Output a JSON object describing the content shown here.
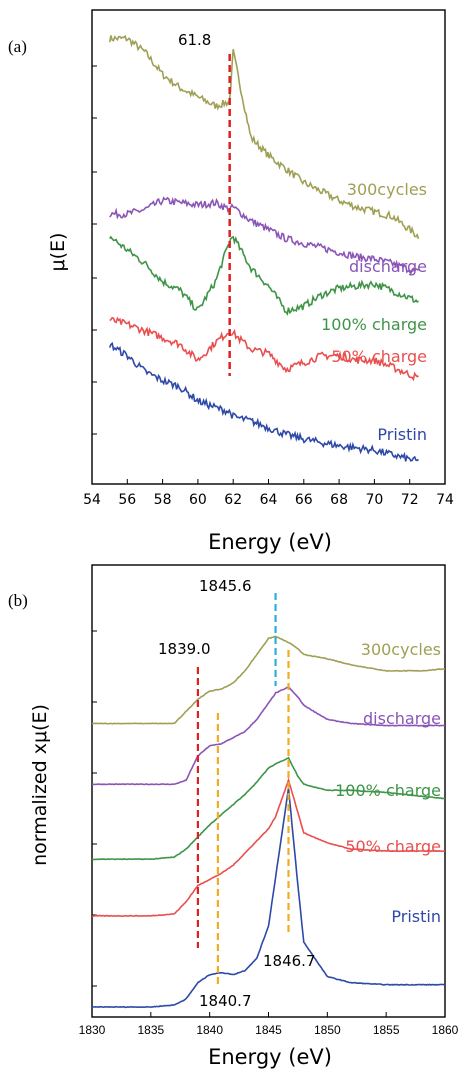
{
  "colors": {
    "300cycles": "#9fa055",
    "discharge": "#8a55b7",
    "100% charge": "#3e9447",
    "50% charge": "#e94f4f",
    "Pristin": "#2e49a8",
    "red_line": "#e02020",
    "orange_line": "#f0ad20",
    "blue_line": "#2ab0e0"
  },
  "chart_data": [
    {
      "type": "line",
      "panel_label": "(a)",
      "ylabel": "μ(E)",
      "xlabel": "Energy    (eV)",
      "xlim": [
        54,
        74
      ],
      "xticks": [
        "54",
        "56",
        "58",
        "60",
        "62",
        "64",
        "66",
        "68",
        "70",
        "72",
        "74"
      ],
      "x": [
        55,
        56,
        57,
        58,
        59,
        60,
        61,
        61.8,
        62,
        63,
        64,
        65,
        66,
        67,
        68,
        69,
        70,
        71,
        72.5
      ],
      "series": [
        {
          "name": "300cycles",
          "values": [
            9.5,
            9.5,
            9.2,
            8.7,
            8.4,
            8.2,
            8.0,
            8.1,
            9.2,
            7.3,
            6.9,
            6.6,
            6.3,
            6.1,
            5.9,
            5.75,
            5.65,
            5.55,
            5.1
          ]
        },
        {
          "name": "discharge",
          "values": [
            5.6,
            5.6,
            5.7,
            5.9,
            5.85,
            5.8,
            5.85,
            5.7,
            5.75,
            5.45,
            5.25,
            5.05,
            4.95,
            4.85,
            4.75,
            4.65,
            4.6,
            4.5,
            4.3
          ]
        },
        {
          "name": "100% charge",
          "values": [
            5.1,
            4.8,
            4.5,
            4.1,
            3.9,
            3.45,
            4.1,
            5.0,
            5.1,
            4.4,
            4.0,
            3.45,
            3.55,
            3.8,
            3.95,
            4.0,
            4.05,
            3.9,
            3.65
          ]
        },
        {
          "name": "50% charge",
          "values": [
            3.25,
            3.15,
            3.0,
            2.85,
            2.7,
            2.35,
            2.75,
            3.0,
            2.95,
            2.6,
            2.5,
            2.15,
            2.3,
            2.45,
            2.45,
            2.35,
            2.35,
            2.2,
            1.95
          ]
        },
        {
          "name": "Pristin",
          "values": [
            2.7,
            2.45,
            2.1,
            1.9,
            1.75,
            1.45,
            1.3,
            1.2,
            1.1,
            1.0,
            0.85,
            0.7,
            0.6,
            0.52,
            0.45,
            0.4,
            0.35,
            0.25,
            0.1
          ]
        }
      ],
      "annotations": [
        {
          "text": "61.8",
          "x": 61.8
        }
      ],
      "vlines": [
        {
          "x": 61.8,
          "color": "red"
        }
      ]
    },
    {
      "type": "line",
      "panel_label": "(b)",
      "ylabel": "normalized xμ(E)",
      "xlabel": "Energy    (eV)",
      "xlim": [
        1830,
        1860
      ],
      "xticks": [
        "1830",
        "1835",
        "1840",
        "1845",
        "1850",
        "1855",
        "1860"
      ],
      "x": [
        1830,
        1835,
        1837,
        1838,
        1839,
        1840,
        1841,
        1842,
        1843,
        1844,
        1845,
        1845.6,
        1846.7,
        1847.5,
        1848,
        1850,
        1852,
        1855,
        1858,
        1860
      ],
      "series": [
        {
          "name": "300cycles",
          "values": [
            7.0,
            7.0,
            7.0,
            7.3,
            7.6,
            7.8,
            7.85,
            8.0,
            8.3,
            8.7,
            9.1,
            9.15,
            9.0,
            8.85,
            8.7,
            8.6,
            8.45,
            8.3,
            8.3,
            8.35
          ]
        },
        {
          "name": "discharge",
          "values": [
            5.5,
            5.5,
            5.5,
            5.6,
            6.2,
            6.45,
            6.5,
            6.65,
            6.8,
            7.1,
            7.5,
            7.75,
            7.9,
            7.65,
            7.45,
            7.1,
            7.0,
            6.95,
            6.95,
            6.95
          ]
        },
        {
          "name": "100% charge",
          "values": [
            3.65,
            3.65,
            3.7,
            3.9,
            4.2,
            4.5,
            4.75,
            5.0,
            5.25,
            5.55,
            5.9,
            6.0,
            6.15,
            5.7,
            5.5,
            5.35,
            5.35,
            5.3,
            5.2,
            5.15
          ]
        },
        {
          "name": "50% charge",
          "values": [
            2.25,
            2.25,
            2.3,
            2.6,
            3.0,
            3.15,
            3.3,
            3.5,
            3.8,
            4.1,
            4.4,
            4.7,
            5.6,
            4.8,
            4.3,
            4.05,
            3.9,
            3.85,
            3.85,
            3.85
          ]
        },
        {
          "name": "Pristin",
          "values": [
            0.0,
            0.0,
            0.05,
            0.2,
            0.6,
            0.8,
            0.85,
            0.8,
            0.9,
            1.2,
            2.0,
            3.2,
            5.4,
            3.0,
            1.6,
            0.75,
            0.6,
            0.55,
            0.55,
            0.55
          ]
        }
      ],
      "annotations": [
        {
          "text": "1845.6",
          "x": 1845.6
        },
        {
          "text": "1839.0",
          "x": 1839.0
        },
        {
          "text": "1846.7",
          "x": 1846.7
        },
        {
          "text": "1840.7",
          "x": 1840.7
        }
      ],
      "vlines": [
        {
          "x": 1839.0,
          "color": "red"
        },
        {
          "x": 1840.7,
          "color": "orange"
        },
        {
          "x": 1845.6,
          "color": "blue"
        },
        {
          "x": 1846.7,
          "color": "orange"
        }
      ]
    }
  ]
}
